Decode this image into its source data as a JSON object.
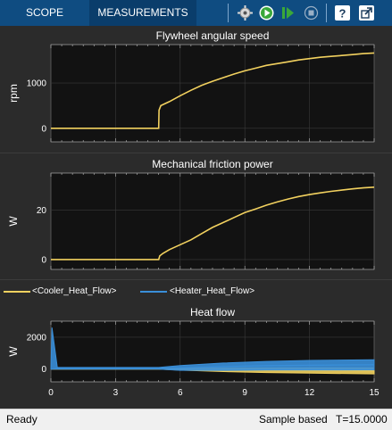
{
  "toolbar": {
    "tabs": [
      {
        "label": "SCOPE",
        "active": false
      },
      {
        "label": "MEASUREMENTS",
        "active": true
      }
    ],
    "buttons": [
      {
        "icon": "step-back-icon"
      },
      {
        "icon": "run-icon"
      },
      {
        "icon": "step-forward-icon"
      },
      {
        "icon": "stop-icon"
      },
      {
        "icon": "help-icon"
      },
      {
        "icon": "undock-icon"
      }
    ]
  },
  "legend": {
    "items": [
      {
        "label": "<Cooler_Heat_Flow>",
        "color": "#f2d15f"
      },
      {
        "label": "<Heater_Heat_Flow>",
        "color": "#3a8fd9"
      }
    ]
  },
  "status": {
    "left": "Ready",
    "mode": "Sample based",
    "time": "T=15.0000"
  },
  "chart_data": [
    {
      "type": "line",
      "title": "Flywheel angular speed",
      "xlabel": "",
      "ylabel": "rpm",
      "xlim": [
        0,
        15
      ],
      "ylim": [
        -300,
        1850
      ],
      "yticks": [
        0,
        1000
      ],
      "grid": true,
      "series": [
        {
          "color": "#f2d15f",
          "x": [
            0,
            2,
            4,
            5.0,
            5.02,
            5.1,
            5.5,
            6,
            6.5,
            7,
            7.5,
            8,
            8.5,
            9,
            9.5,
            10,
            10.5,
            11,
            11.5,
            12,
            12.5,
            13,
            13.5,
            14,
            14.5,
            15
          ],
          "y": [
            0,
            0,
            0,
            0,
            400,
            500,
            590,
            720,
            840,
            950,
            1040,
            1120,
            1200,
            1270,
            1330,
            1390,
            1430,
            1470,
            1510,
            1540,
            1570,
            1590,
            1610,
            1630,
            1650,
            1665
          ]
        }
      ]
    },
    {
      "type": "line",
      "title": "Mechanical friction power",
      "xlabel": "",
      "ylabel": "W",
      "xlim": [
        0,
        15
      ],
      "ylim": [
        -4,
        35
      ],
      "yticks": [
        0,
        20
      ],
      "grid": true,
      "series": [
        {
          "color": "#f2d15f",
          "x": [
            0,
            2,
            4,
            5.0,
            5.05,
            5.2,
            5.5,
            6,
            6.5,
            7,
            7.5,
            8,
            8.5,
            9,
            9.5,
            10,
            10.5,
            11,
            11.5,
            12,
            12.5,
            13,
            13.5,
            14,
            14.5,
            15
          ],
          "y": [
            0,
            0,
            0,
            0,
            1.5,
            2.5,
            4,
            6,
            8,
            10.5,
            13,
            15,
            17,
            19,
            20.5,
            22,
            23.3,
            24.5,
            25.5,
            26.3,
            27,
            27.6,
            28.1,
            28.6,
            29,
            29.3
          ]
        }
      ]
    },
    {
      "type": "line",
      "title": "Heat flow",
      "xlabel": "",
      "ylabel": "W",
      "xlim": [
        0,
        15
      ],
      "ylim": [
        -800,
        3000
      ],
      "yticks": [
        0,
        2000
      ],
      "xticks": [
        0,
        3,
        6,
        9,
        12,
        15
      ],
      "grid": true,
      "series": [
        {
          "name": "<Cooler_Heat_Flow>",
          "color": "#f2d15f",
          "x": [
            0,
            5,
            6,
            8,
            10,
            12,
            15
          ],
          "y_min": [
            0,
            0,
            -70,
            -160,
            -220,
            -260,
            -300
          ],
          "y_max": [
            0,
            0,
            40,
            60,
            70,
            80,
            80
          ]
        },
        {
          "name": "<Heater_Heat_Flow>",
          "color": "#3a8fd9",
          "x": [
            0,
            0.05,
            0.3,
            5,
            6,
            8,
            10,
            12,
            15
          ],
          "y_min": [
            0,
            0,
            0,
            0,
            -80,
            -80,
            -60,
            -60,
            -50
          ],
          "y_max": [
            0,
            2600,
            100,
            100,
            220,
            380,
            480,
            540,
            580
          ]
        }
      ]
    }
  ]
}
